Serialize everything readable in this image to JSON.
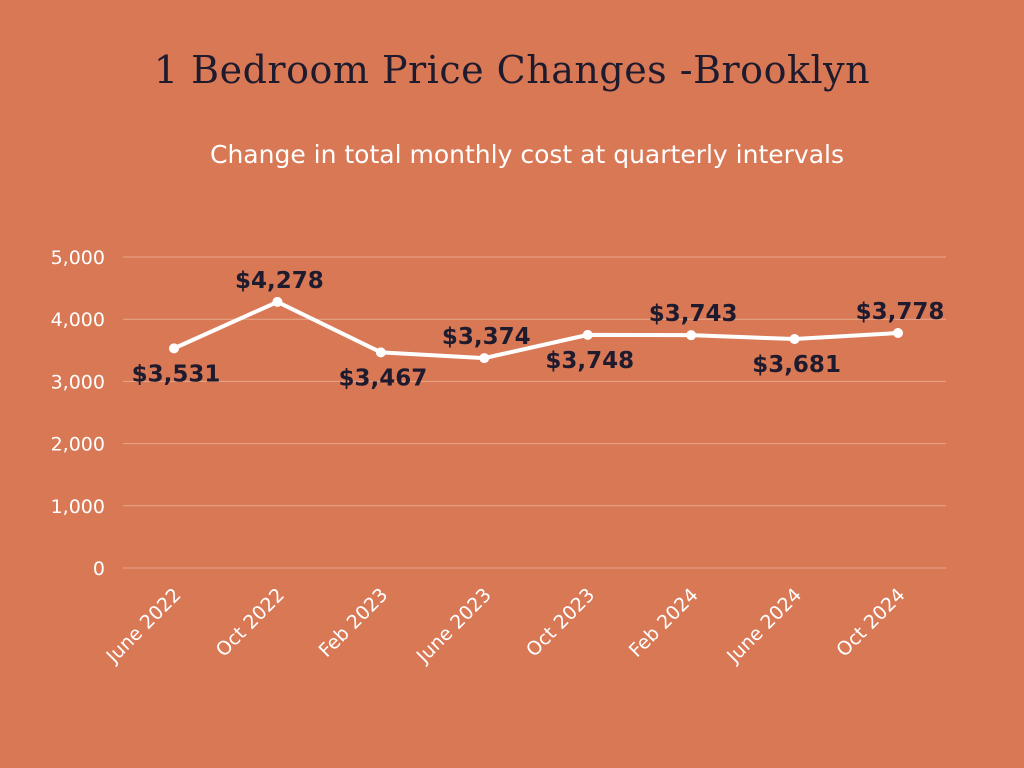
{
  "chart_data": {
    "type": "line",
    "title": "1 Bedroom Price Changes -Brooklyn",
    "subtitle": "Change in total monthly cost at quarterly intervals",
    "xlabel": "",
    "ylabel": "",
    "categories": [
      "June 2022",
      "Oct 2022",
      "Feb 2023",
      "June 2023",
      "Oct 2023",
      "Feb 2024",
      "June 2024",
      "Oct 2024"
    ],
    "values": [
      3531,
      4278,
      3467,
      3374,
      3748,
      3743,
      3681,
      3778
    ],
    "data_labels": [
      "$3,531",
      "$4,278",
      "$3,467",
      "$3,374",
      "$3,748",
      "$3,743",
      "$3,681",
      "$3,778"
    ],
    "label_positions": [
      "below",
      "above",
      "below",
      "above",
      "below",
      "above",
      "below",
      "above"
    ],
    "ylim": [
      0,
      5000
    ],
    "yticks": [
      0,
      1000,
      2000,
      3000,
      4000,
      5000
    ],
    "ytick_labels": [
      "0",
      "1,000",
      "2,000",
      "3,000",
      "4,000",
      "5,000"
    ],
    "grid": true,
    "legend": "none",
    "colors": {
      "background": "#D97855",
      "line": "#FFFFFF",
      "grid": "#E8A78C",
      "title": "#1E1B2E",
      "data_label": "#1E1B2E",
      "tick_label": "#FFFFFF"
    }
  }
}
